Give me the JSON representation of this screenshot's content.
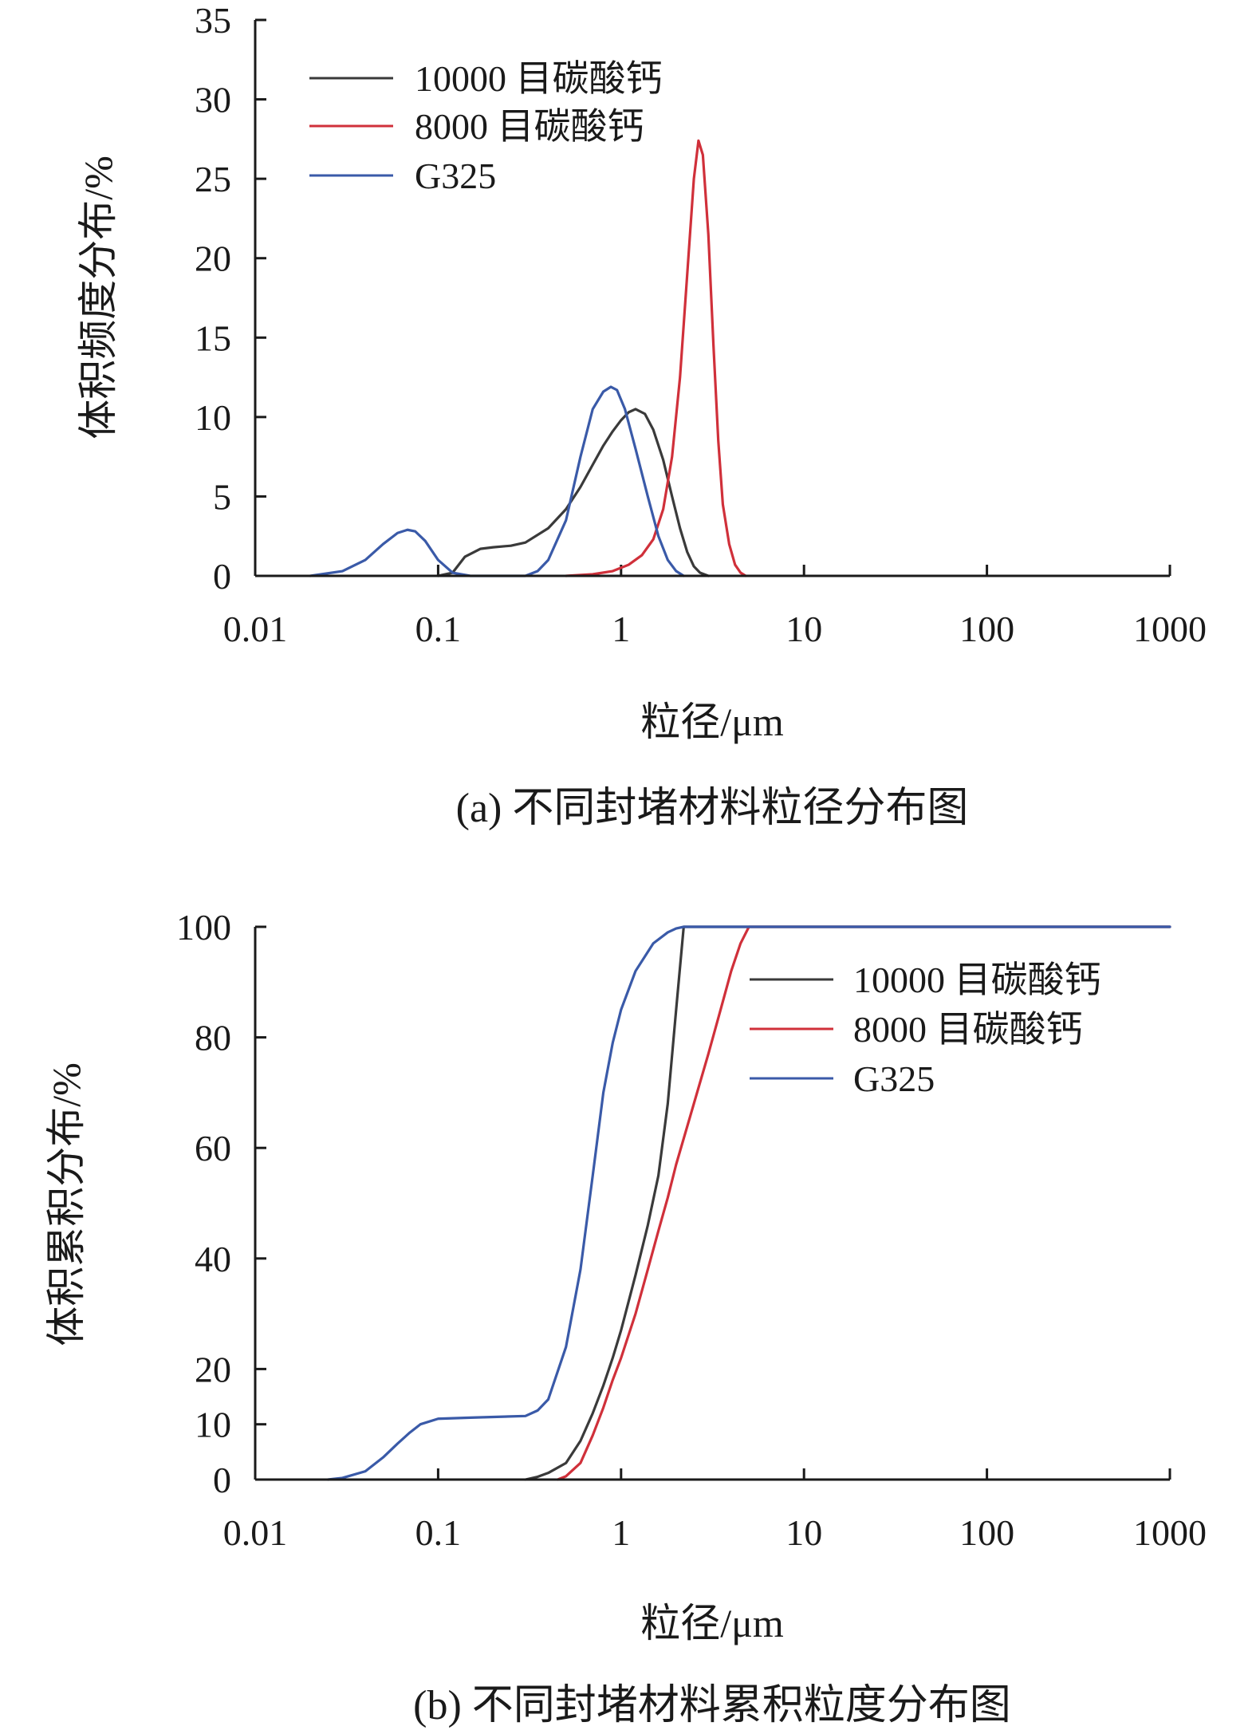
{
  "chart_data": [
    {
      "type": "line",
      "caption": "(a) 不同封堵材料粒径分布图",
      "xlabel": "粒径/μm",
      "ylabel": "体积频度分布/%",
      "x_scale": "log",
      "xlim": [
        0.01,
        1000
      ],
      "ylim": [
        0,
        35
      ],
      "x_ticks": [
        0.01,
        0.1,
        1,
        10,
        100,
        1000
      ],
      "x_tick_labels": [
        "0.01",
        "0.1",
        "1",
        "10",
        "100",
        "1000"
      ],
      "y_ticks": [
        0,
        5,
        10,
        15,
        20,
        25,
        30,
        35
      ],
      "y_tick_labels": [
        "0",
        "5",
        "10",
        "15",
        "20",
        "25",
        "30",
        "35"
      ],
      "grid": false,
      "legend_position": "top-left",
      "series": [
        {
          "name": "10000 目碳酸钙",
          "color": "#3a3a3a",
          "points": [
            [
              0.1,
              0
            ],
            [
              0.12,
              0.2
            ],
            [
              0.14,
              1.2
            ],
            [
              0.17,
              1.7
            ],
            [
              0.2,
              1.8
            ],
            [
              0.25,
              1.9
            ],
            [
              0.3,
              2.1
            ],
            [
              0.4,
              3
            ],
            [
              0.5,
              4.2
            ],
            [
              0.6,
              5.6
            ],
            [
              0.7,
              7
            ],
            [
              0.8,
              8.2
            ],
            [
              0.9,
              9.1
            ],
            [
              1.0,
              9.8
            ],
            [
              1.1,
              10.3
            ],
            [
              1.2,
              10.5
            ],
            [
              1.35,
              10.2
            ],
            [
              1.5,
              9.2
            ],
            [
              1.7,
              7.3
            ],
            [
              1.9,
              5
            ],
            [
              2.1,
              3
            ],
            [
              2.3,
              1.5
            ],
            [
              2.5,
              0.6
            ],
            [
              2.7,
              0.2
            ],
            [
              3.0,
              0
            ]
          ]
        },
        {
          "name": "8000 目碳酸钙",
          "color": "#d0303a",
          "points": [
            [
              0.5,
              0
            ],
            [
              0.7,
              0.1
            ],
            [
              0.9,
              0.3
            ],
            [
              1.1,
              0.7
            ],
            [
              1.3,
              1.3
            ],
            [
              1.5,
              2.3
            ],
            [
              1.7,
              4.2
            ],
            [
              1.9,
              7.5
            ],
            [
              2.1,
              12.5
            ],
            [
              2.3,
              19
            ],
            [
              2.5,
              25
            ],
            [
              2.65,
              27.4
            ],
            [
              2.8,
              26.5
            ],
            [
              3.0,
              21.5
            ],
            [
              3.2,
              14.5
            ],
            [
              3.4,
              8.5
            ],
            [
              3.6,
              4.5
            ],
            [
              3.9,
              2
            ],
            [
              4.2,
              0.7
            ],
            [
              4.5,
              0.2
            ],
            [
              4.8,
              0
            ]
          ]
        },
        {
          "name": "G325",
          "color": "#3a5aa8",
          "points": [
            [
              0.02,
              0
            ],
            [
              0.03,
              0.3
            ],
            [
              0.04,
              1
            ],
            [
              0.05,
              2
            ],
            [
              0.06,
              2.7
            ],
            [
              0.068,
              2.9
            ],
            [
              0.075,
              2.8
            ],
            [
              0.085,
              2.2
            ],
            [
              0.1,
              1
            ],
            [
              0.12,
              0.2
            ],
            [
              0.15,
              0
            ],
            [
              0.3,
              0
            ],
            [
              0.35,
              0.3
            ],
            [
              0.4,
              1
            ],
            [
              0.5,
              3.5
            ],
            [
              0.6,
              7.5
            ],
            [
              0.7,
              10.5
            ],
            [
              0.8,
              11.6
            ],
            [
              0.88,
              11.9
            ],
            [
              0.95,
              11.7
            ],
            [
              1.05,
              10.5
            ],
            [
              1.2,
              8
            ],
            [
              1.4,
              5
            ],
            [
              1.6,
              2.5
            ],
            [
              1.8,
              1
            ],
            [
              2.0,
              0.3
            ],
            [
              2.2,
              0
            ]
          ]
        }
      ]
    },
    {
      "type": "line",
      "caption": "(b) 不同封堵材料累积粒度分布图",
      "xlabel": "粒径/μm",
      "ylabel": "体积累积分布/%",
      "x_scale": "log",
      "xlim": [
        0.01,
        1000
      ],
      "ylim": [
        0,
        100
      ],
      "x_ticks": [
        0.01,
        0.1,
        1,
        10,
        100,
        1000
      ],
      "x_tick_labels": [
        "0.01",
        "0.1",
        "1",
        "10",
        "100",
        "1000"
      ],
      "y_ticks": [
        0,
        10,
        20,
        40,
        60,
        80,
        100
      ],
      "y_tick_labels": [
        "0",
        "10",
        "20",
        "40",
        "60",
        "80",
        "100"
      ],
      "grid": false,
      "legend_position": "top-right",
      "series": [
        {
          "name": "10000 目碳酸钙",
          "color": "#3a3a3a",
          "points": [
            [
              0.3,
              0
            ],
            [
              0.35,
              0.5
            ],
            [
              0.4,
              1.2
            ],
            [
              0.5,
              3
            ],
            [
              0.6,
              7
            ],
            [
              0.7,
              12
            ],
            [
              0.8,
              17
            ],
            [
              0.9,
              22
            ],
            [
              1.0,
              27
            ],
            [
              1.2,
              37
            ],
            [
              1.4,
              46
            ],
            [
              1.6,
              55
            ],
            [
              1.8,
              68
            ],
            [
              2.0,
              85
            ],
            [
              2.2,
              100
            ],
            [
              5,
              100
            ],
            [
              1000,
              100
            ]
          ]
        },
        {
          "name": "8000 目碳酸钙",
          "color": "#d0303a",
          "points": [
            [
              0.45,
              0
            ],
            [
              0.5,
              0.6
            ],
            [
              0.6,
              3
            ],
            [
              0.7,
              8
            ],
            [
              0.8,
              13
            ],
            [
              0.9,
              18
            ],
            [
              1.0,
              22
            ],
            [
              1.2,
              30
            ],
            [
              1.4,
              38
            ],
            [
              1.6,
              45
            ],
            [
              1.8,
              51
            ],
            [
              2.0,
              57
            ],
            [
              2.5,
              68
            ],
            [
              3.0,
              77
            ],
            [
              3.5,
              85
            ],
            [
              4.0,
              92
            ],
            [
              4.5,
              97
            ],
            [
              5.0,
              100
            ],
            [
              1000,
              100
            ]
          ]
        },
        {
          "name": "G325",
          "color": "#3a5aa8",
          "points": [
            [
              0.025,
              0
            ],
            [
              0.03,
              0.3
            ],
            [
              0.04,
              1.5
            ],
            [
              0.05,
              4
            ],
            [
              0.06,
              6.5
            ],
            [
              0.07,
              8.5
            ],
            [
              0.08,
              10
            ],
            [
              0.1,
              11
            ],
            [
              0.15,
              11.2
            ],
            [
              0.3,
              11.5
            ],
            [
              0.35,
              12.5
            ],
            [
              0.4,
              14.5
            ],
            [
              0.5,
              24
            ],
            [
              0.6,
              38
            ],
            [
              0.7,
              55
            ],
            [
              0.8,
              70
            ],
            [
              0.9,
              79
            ],
            [
              1.0,
              85
            ],
            [
              1.2,
              92
            ],
            [
              1.5,
              97
            ],
            [
              1.8,
              99
            ],
            [
              2.0,
              99.7
            ],
            [
              2.2,
              100
            ],
            [
              1000,
              100
            ]
          ]
        }
      ]
    }
  ]
}
